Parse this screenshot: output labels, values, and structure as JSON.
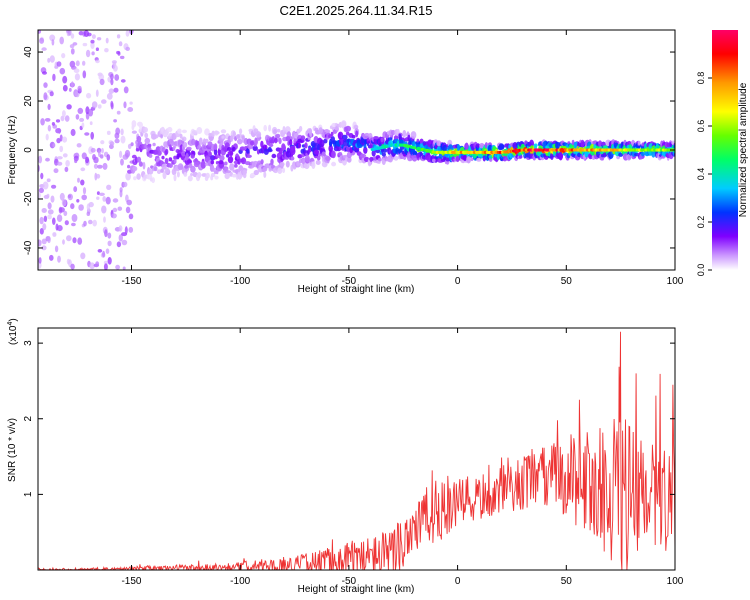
{
  "figure_title": "C2E1.2025.264.11.34.R15",
  "chart_data": [
    {
      "type": "heatmap",
      "title": "C2E1.2025.264.11.34.R15",
      "xlabel": "Height of straight line (km)",
      "ylabel": "Frequency (Hz)",
      "xlim": [
        -193,
        100
      ],
      "ylim": [
        -49,
        49
      ],
      "xticks": [
        -150,
        -100,
        -50,
        0,
        50,
        100
      ],
      "yticks": [
        -40,
        -20,
        0,
        20,
        40
      ],
      "colorbar": {
        "label": "Normalized spectral amplitude",
        "range": [
          0,
          1
        ],
        "ticks": [
          0.0,
          0.2,
          0.4,
          0.6,
          0.8
        ],
        "tick_labels": [
          "0.0",
          "0.2",
          "0.4",
          "0.6",
          "0.8"
        ],
        "colors": [
          "#ffffff",
          "#cc99ff",
          "#7f00ff",
          "#0033ff",
          "#00ccff",
          "#00ff66",
          "#66ff00",
          "#ffff00",
          "#ff9900",
          "#ff0000",
          "#ff0066"
        ]
      },
      "ridge": {
        "description": "frequency centre of the energy band vs height",
        "x": [
          -193,
          -160,
          -150,
          -130,
          -110,
          -90,
          -80,
          -70,
          -60,
          -50,
          -45,
          -40,
          -35,
          -30,
          -25,
          -20,
          -15,
          -10,
          -5,
          0,
          10,
          20,
          30,
          40,
          50,
          60,
          70,
          80,
          90,
          100
        ],
        "center_hz": [
          0,
          0,
          -1,
          -2,
          -2,
          -1,
          0,
          1,
          2,
          3,
          2,
          0,
          1,
          2,
          2,
          1,
          0,
          -1,
          -1,
          -1,
          -1,
          -1,
          0,
          0,
          0,
          0,
          0,
          0,
          0,
          0
        ],
        "half_width_hz": [
          45,
          45,
          12,
          10,
          10,
          10,
          9,
          8,
          8,
          8,
          7,
          6,
          6,
          6,
          5,
          5,
          4,
          4,
          4,
          3,
          3,
          3,
          3,
          3,
          3,
          3,
          3,
          3,
          3,
          3
        ],
        "peak_amplitude": [
          0.12,
          0.15,
          0.2,
          0.22,
          0.24,
          0.26,
          0.28,
          0.3,
          0.32,
          0.35,
          0.38,
          0.45,
          0.45,
          0.45,
          0.5,
          0.55,
          0.6,
          0.65,
          0.7,
          0.75,
          0.8,
          0.85,
          0.9,
          0.92,
          0.85,
          0.8,
          0.75,
          0.7,
          0.65,
          0.6
        ]
      }
    },
    {
      "type": "line",
      "title": "",
      "xlabel": "Height of straight line (km)",
      "ylabel": "SNR (10 * v/v)",
      "y_multiplier_label": "(x10",
      "y_multiplier_exp": "4",
      "y_multiplier_close": ")",
      "xlim": [
        -193,
        100
      ],
      "ylim": [
        0,
        3.2
      ],
      "xticks": [
        -150,
        -100,
        -50,
        0,
        50,
        100
      ],
      "yticks": [
        1,
        2,
        3
      ],
      "color": "#ee3333",
      "envelope": {
        "x": [
          -193,
          -160,
          -140,
          -120,
          -100,
          -90,
          -80,
          -70,
          -60,
          -50,
          -40,
          -30,
          -25,
          -20,
          -10,
          0,
          10,
          20,
          30,
          40,
          50,
          60,
          70,
          75,
          80,
          90,
          100
        ],
        "baseline": [
          0.005,
          0.01,
          0.02,
          0.03,
          0.04,
          0.05,
          0.06,
          0.08,
          0.1,
          0.12,
          0.15,
          0.2,
          0.4,
          0.6,
          0.75,
          0.85,
          0.95,
          1.05,
          1.15,
          1.2,
          1.25,
          1.15,
          1.05,
          0.95,
          0.9,
          0.85,
          0.8
        ],
        "amplitude": [
          0.02,
          0.03,
          0.05,
          0.06,
          0.08,
          0.1,
          0.12,
          0.18,
          0.25,
          0.35,
          0.4,
          0.45,
          0.55,
          0.55,
          0.5,
          0.45,
          0.4,
          0.4,
          0.45,
          0.55,
          0.7,
          0.9,
          1.1,
          1.6,
          1.3,
          1.2,
          1.1
        ],
        "peaks": [
          {
            "x": -10,
            "y": 1.18
          },
          {
            "x": 75,
            "y": 3.15
          },
          {
            "x": 82,
            "y": 2.6
          },
          {
            "x": 99,
            "y": 2.45
          },
          {
            "x": 56,
            "y": 2.25
          },
          {
            "x": 46,
            "y": 1.98
          }
        ]
      }
    }
  ]
}
